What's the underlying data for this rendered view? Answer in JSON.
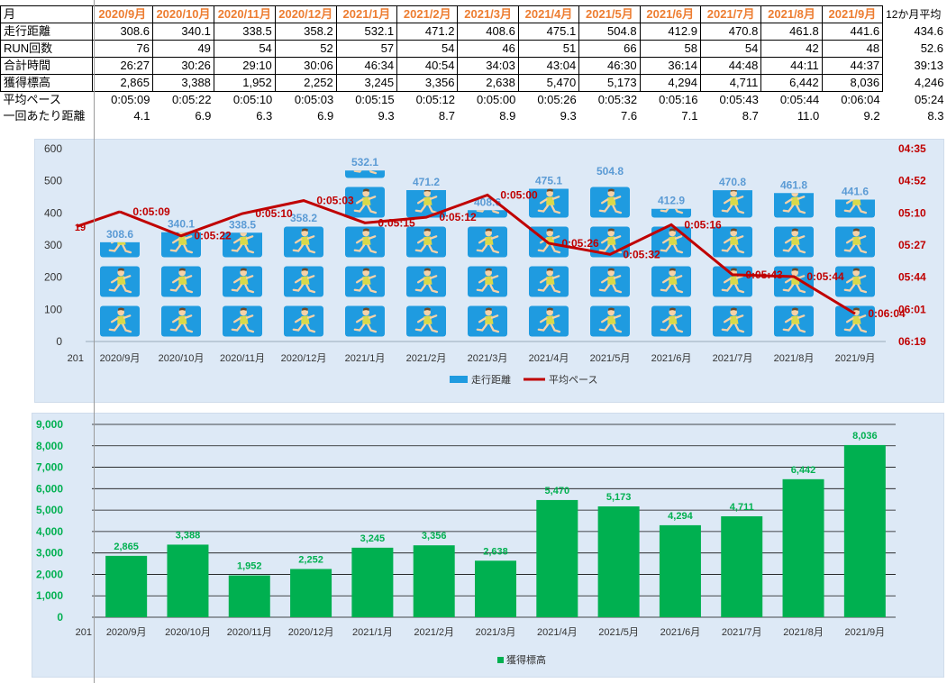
{
  "table": {
    "months": [
      "2020/9月",
      "2020/10月",
      "2020/11月",
      "2020/12月",
      "2021/1月",
      "2021/2月",
      "2021/3月",
      "2021/4月",
      "2021/5月",
      "2021/6月",
      "2021/7月",
      "2021/8月",
      "2021/9月"
    ],
    "month_header_label": "月",
    "avg_header_label": "12か月平均",
    "rows": [
      {
        "label": "走行距離",
        "values": [
          "308.6",
          "340.1",
          "338.5",
          "358.2",
          "532.1",
          "471.2",
          "408.6",
          "475.1",
          "504.8",
          "412.9",
          "470.8",
          "461.8",
          "441.6"
        ],
        "avg": "434.6",
        "bordered": true
      },
      {
        "label": "RUN回数",
        "values": [
          "76",
          "49",
          "54",
          "52",
          "57",
          "54",
          "46",
          "51",
          "66",
          "58",
          "54",
          "42",
          "48"
        ],
        "avg": "52.6",
        "bordered": true
      },
      {
        "label": "合計時間",
        "values": [
          "26:27",
          "30:26",
          "29:10",
          "30:06",
          "46:34",
          "40:54",
          "34:03",
          "43:04",
          "46:30",
          "36:14",
          "44:48",
          "44:11",
          "44:37"
        ],
        "avg": "39:13",
        "bordered": true
      },
      {
        "label": "獲得標高",
        "values": [
          "2,865",
          "3,388",
          "1,952",
          "2,252",
          "3,245",
          "3,356",
          "2,638",
          "5,470",
          "5,173",
          "4,294",
          "4,711",
          "6,442",
          "8,036"
        ],
        "avg": "4,246",
        "bordered": true
      },
      {
        "label": "平均ペース",
        "values": [
          "0:05:09",
          "0:05:22",
          "0:05:10",
          "0:05:03",
          "0:05:15",
          "0:05:12",
          "0:05:00",
          "0:05:26",
          "0:05:32",
          "0:05:16",
          "0:05:43",
          "0:05:44",
          "0:06:04"
        ],
        "avg": "05:24",
        "bordered": false
      },
      {
        "label": "一回あたり距離",
        "values": [
          "4.1",
          "6.9",
          "6.3",
          "6.9",
          "9.3",
          "8.7",
          "8.9",
          "9.3",
          "7.6",
          "7.1",
          "8.7",
          "11.0",
          "9.2"
        ],
        "avg": "8.3",
        "bordered": false
      }
    ]
  },
  "colors": {
    "header_orange": "#ed7d31",
    "bar_blue": "#1f9be0",
    "bar_label_blue": "#5b9bd5",
    "line_red": "#c00000",
    "bar_green": "#00b050",
    "green_label": "#00b050",
    "chart_bg": "#dde9f6"
  },
  "chart_data": [
    {
      "type": "bar",
      "title": "",
      "categories": [
        "2020/9月",
        "2020/10月",
        "2020/11月",
        "2020/12月",
        "2021/1月",
        "2021/2月",
        "2021/3月",
        "2021/4月",
        "2021/5月",
        "2021/6月",
        "2021/7月",
        "2021/8月",
        "2021/9月"
      ],
      "leading_category_label": "201",
      "leading_value_label": "19",
      "series": [
        {
          "name": "走行距離",
          "type": "bar",
          "values": [
            308.6,
            340.1,
            338.5,
            358.2,
            532.1,
            471.2,
            408.6,
            475.1,
            504.8,
            412.9,
            470.8,
            461.8,
            441.6
          ],
          "labels": [
            "308.6",
            "340.1",
            "338.5",
            "358.2",
            "532.1",
            "471.2",
            "408.6",
            "475.1",
            "504.8",
            "412.9",
            "470.8",
            "461.8",
            "441.6"
          ],
          "fill": "runner-pictogram"
        },
        {
          "name": "平均ペース",
          "type": "line",
          "axis": "secondary",
          "values_sec": [
            309,
            322,
            310,
            303,
            315,
            312,
            300,
            326,
            332,
            316,
            343,
            344,
            364
          ],
          "labels": [
            "0:05:09",
            "0:05:22",
            "0:05:10",
            "0:05:03",
            "0:05:15",
            "0:05:12",
            "0:05:00",
            "0:05:26",
            "0:05:32",
            "0:05:16",
            "0:05:43",
            "0:05:44",
            "0:06:04"
          ]
        }
      ],
      "ylim": [
        0,
        600
      ],
      "yticks": [
        "0",
        "100",
        "200",
        "300",
        "400",
        "500",
        "600"
      ],
      "y2_ticks": [
        "04:35",
        "04:52",
        "05:10",
        "05:27",
        "05:44",
        "06:01",
        "06:19"
      ],
      "y2_inverted": true,
      "y2_range_sec": [
        275,
        379
      ],
      "legend": {
        "position": "bottom",
        "entries": [
          "走行距離",
          "平均ペース"
        ]
      },
      "grid": false
    },
    {
      "type": "bar",
      "title": "",
      "categories": [
        "2020/9月",
        "2020/10月",
        "2020/11月",
        "2020/12月",
        "2021/1月",
        "2021/2月",
        "2021/3月",
        "2021/4月",
        "2021/5月",
        "2021/6月",
        "2021/7月",
        "2021/8月",
        "2021/9月"
      ],
      "leading_category_label": "201",
      "series": [
        {
          "name": "獲得標高",
          "values": [
            2865,
            3388,
            1952,
            2252,
            3245,
            3356,
            2638,
            5470,
            5173,
            4294,
            4711,
            6442,
            8036
          ],
          "labels": [
            "2,865",
            "3,388",
            "1,952",
            "2,252",
            "3,245",
            "3,356",
            "2,638",
            "5,470",
            "5,173",
            "4,294",
            "4,711",
            "6,442",
            "8,036"
          ]
        }
      ],
      "ylim": [
        0,
        9000
      ],
      "yticks": [
        "0",
        "1,000",
        "2,000",
        "3,000",
        "4,000",
        "5,000",
        "6,000",
        "7,000",
        "8,000",
        "9,000"
      ],
      "legend": {
        "position": "bottom",
        "entries": [
          "獲得標高"
        ]
      },
      "grid": true
    }
  ]
}
